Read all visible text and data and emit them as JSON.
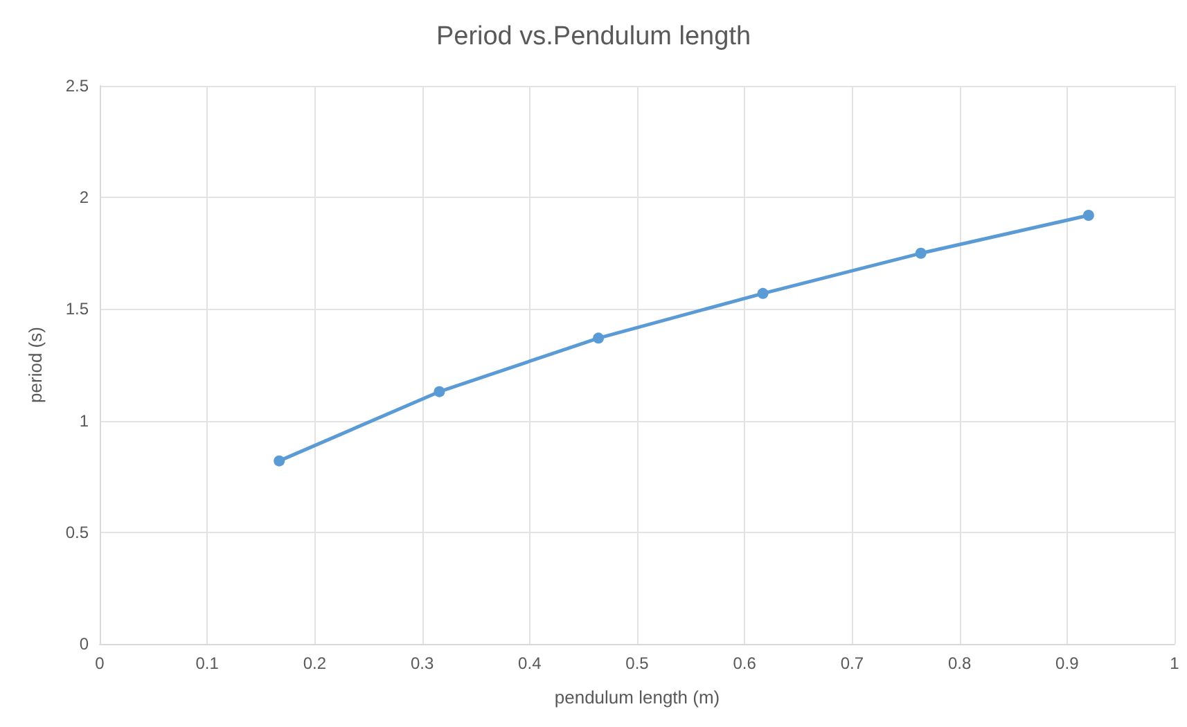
{
  "chart_data": {
    "type": "line",
    "title": "Period vs.Pendulum length",
    "xlabel": "pendulum length (m)",
    "ylabel": "period (s)",
    "x": [
      0.167,
      0.316,
      0.464,
      0.617,
      0.764,
      0.92
    ],
    "series": [
      {
        "color": "#5b9bd5",
        "values": [
          0.82,
          1.13,
          1.37,
          1.57,
          1.75,
          1.92
        ]
      }
    ],
    "xlim": [
      0,
      1
    ],
    "xticks": [
      0,
      0.1,
      0.2,
      0.3,
      0.4,
      0.5,
      0.6,
      0.7,
      0.8,
      0.9,
      1
    ],
    "ylim": [
      0,
      2.5
    ],
    "yticks": [
      0,
      0.5,
      1,
      1.5,
      2,
      2.5
    ],
    "grid": true,
    "marker": "circle",
    "line_style": "solid"
  }
}
